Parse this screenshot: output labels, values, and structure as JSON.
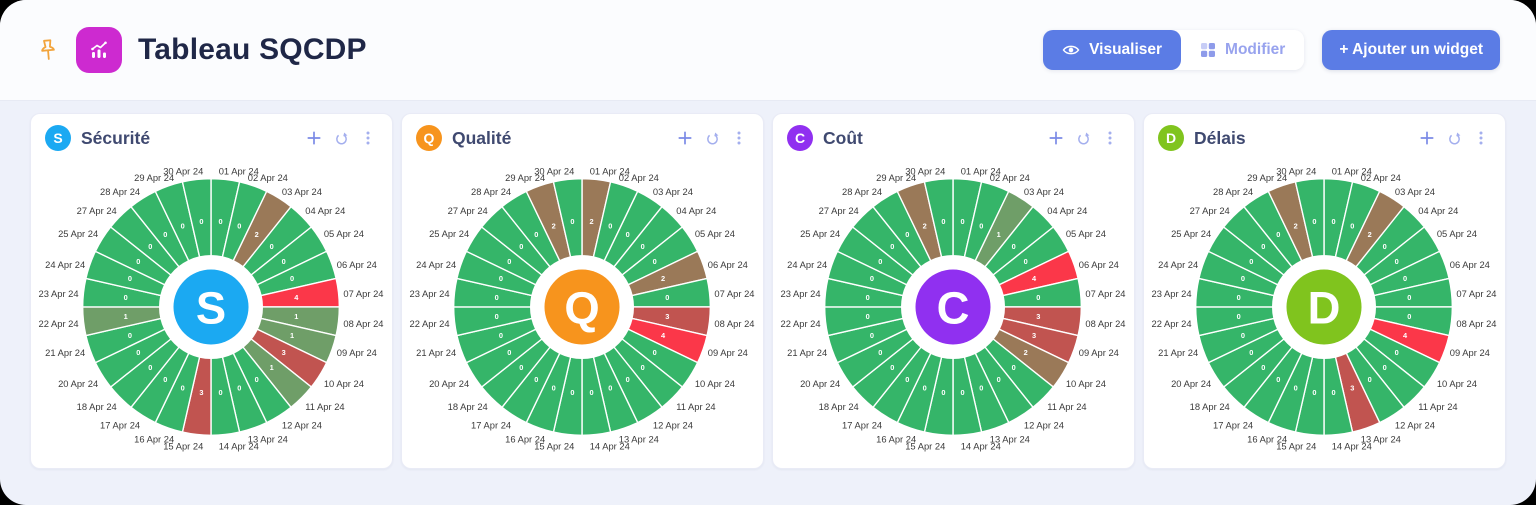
{
  "header": {
    "title": "Tableau SQCDP",
    "buttons": {
      "visualiser": "Visualiser",
      "modifier": "Modifier",
      "add_widget": "+ Ajouter un widget"
    }
  },
  "colors": {
    "accent": "#5b7ce5",
    "app_icon": "#cd2ad0",
    "pin": "#f2a43c",
    "date_label": "#3a3a3a"
  },
  "widgets": [
    {
      "letter": "S",
      "title": "Sécurité",
      "color": "#1ba9f2"
    },
    {
      "letter": "Q",
      "title": "Qualité",
      "color": "#f7941d"
    },
    {
      "letter": "C",
      "title": "Coût",
      "color": "#9030f0"
    },
    {
      "letter": "D",
      "title": "Délais",
      "color": "#80c41e"
    }
  ],
  "chart_data": {
    "type": "pie",
    "subtype": "daily-status-wheel",
    "note": "28 equal angular segments, one per working day, clockwise from top; segment color encodes the value",
    "categories": [
      "01 Apr 24",
      "02 Apr 24",
      "03 Apr 24",
      "04 Apr 24",
      "05 Apr 24",
      "06 Apr 24",
      "07 Apr 24",
      "08 Apr 24",
      "09 Apr 24",
      "10 Apr 24",
      "11 Apr 24",
      "12 Apr 24",
      "13 Apr 24",
      "14 Apr 24",
      "15 Apr 24",
      "16 Apr 24",
      "17 Apr 24",
      "18 Apr 24",
      "20 Apr 24",
      "21 Apr 24",
      "22 Apr 24",
      "23 Apr 24",
      "24 Apr 24",
      "25 Apr 24",
      "27 Apr 24",
      "28 Apr 24",
      "29 Apr 24",
      "30 Apr 24"
    ],
    "palette": {
      "0": "#35b569",
      "1": "#6f9e68",
      "2": "#9a7958",
      "3": "#c15450",
      "4": "#fb3749"
    },
    "series": [
      {
        "name": "Sécurité",
        "values": [
          0,
          0,
          2,
          0,
          0,
          0,
          4,
          1,
          1,
          3,
          1,
          0,
          0,
          0,
          3,
          0,
          0,
          0,
          0,
          0,
          1,
          0,
          0,
          0,
          0,
          0,
          0,
          0
        ]
      },
      {
        "name": "Qualité",
        "values": [
          2,
          0,
          0,
          0,
          0,
          2,
          0,
          3,
          4,
          0,
          0,
          0,
          0,
          0,
          0,
          0,
          0,
          0,
          0,
          0,
          0,
          0,
          0,
          0,
          0,
          0,
          2,
          0
        ]
      },
      {
        "name": "Coût",
        "values": [
          0,
          0,
          1,
          0,
          0,
          4,
          0,
          3,
          3,
          2,
          0,
          0,
          0,
          0,
          0,
          0,
          0,
          0,
          0,
          0,
          0,
          0,
          0,
          0,
          0,
          0,
          2,
          0
        ]
      },
      {
        "name": "Délais",
        "values": [
          0,
          0,
          2,
          0,
          0,
          0,
          0,
          0,
          4,
          0,
          0,
          0,
          3,
          0,
          0,
          0,
          0,
          0,
          0,
          0,
          0,
          0,
          0,
          0,
          0,
          0,
          2,
          0
        ]
      }
    ]
  }
}
